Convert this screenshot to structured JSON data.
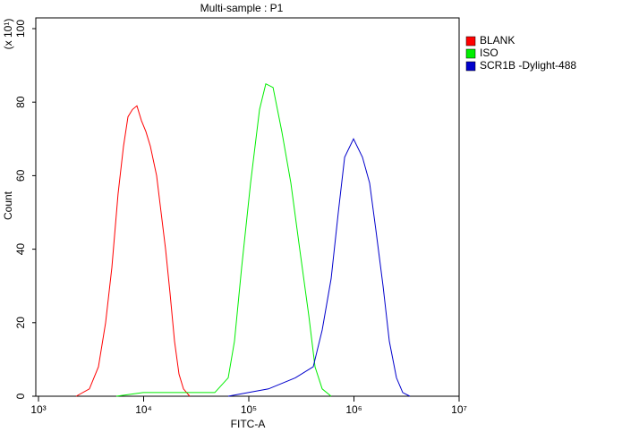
{
  "chart_data": {
    "type": "line",
    "title": "Multi-sample : P1",
    "x_label": "FITC-A",
    "y_label": "Count",
    "y_scale_label": "(x 10¹)",
    "log_x": true,
    "xlim": [
      1000,
      10000000
    ],
    "xticks": [
      {
        "value": 1000,
        "label": "10³"
      },
      {
        "value": 10000,
        "label": "10⁴"
      },
      {
        "value": 100000,
        "label": "10⁵"
      },
      {
        "value": 1000000,
        "label": "10⁶"
      },
      {
        "value": 10000000,
        "label": "10⁷"
      }
    ],
    "ylim": [
      0,
      100
    ],
    "yticks": [
      0,
      20,
      40,
      60,
      80,
      100
    ],
    "legend": "top-right",
    "series": [
      {
        "name": "BLANK",
        "color": "#ff0000",
        "x": [
          2280,
          3050,
          3720,
          4350,
          4990,
          5710,
          6440,
          7100,
          7830,
          8630,
          9520,
          10500,
          11580,
          13280,
          14650,
          16170,
          17830,
          19670,
          21690,
          23930,
          27420
        ],
        "values": [
          0,
          2,
          8,
          20,
          35,
          55,
          68,
          76,
          78,
          79,
          75,
          72,
          68,
          60,
          50,
          40,
          28,
          15,
          6,
          2,
          0
        ]
      },
      {
        "name": "ISO",
        "color": "#00ee00",
        "x": [
          5500,
          9910,
          21690,
          47500,
          63700,
          73100,
          85500,
          104000,
          126500,
          145000,
          170000,
          206000,
          251000,
          305000,
          372000,
          426000,
          499000,
          607000
        ],
        "values": [
          0,
          1,
          1,
          1,
          5,
          15,
          35,
          58,
          78,
          85,
          84,
          72,
          58,
          40,
          22,
          8,
          2,
          0
        ]
      },
      {
        "name": "SCR1B -Dylight-488",
        "color": "#0000cc",
        "x": [
          63700,
          154000,
          277000,
          410000,
          499000,
          607000,
          710000,
          815000,
          991000,
          1205000,
          1410000,
          1618000,
          1892000,
          2168000,
          2535000,
          2910000,
          3404000
        ],
        "values": [
          0,
          2,
          5,
          8,
          18,
          32,
          50,
          65,
          70,
          65,
          58,
          45,
          30,
          15,
          5,
          1,
          0
        ]
      }
    ]
  }
}
